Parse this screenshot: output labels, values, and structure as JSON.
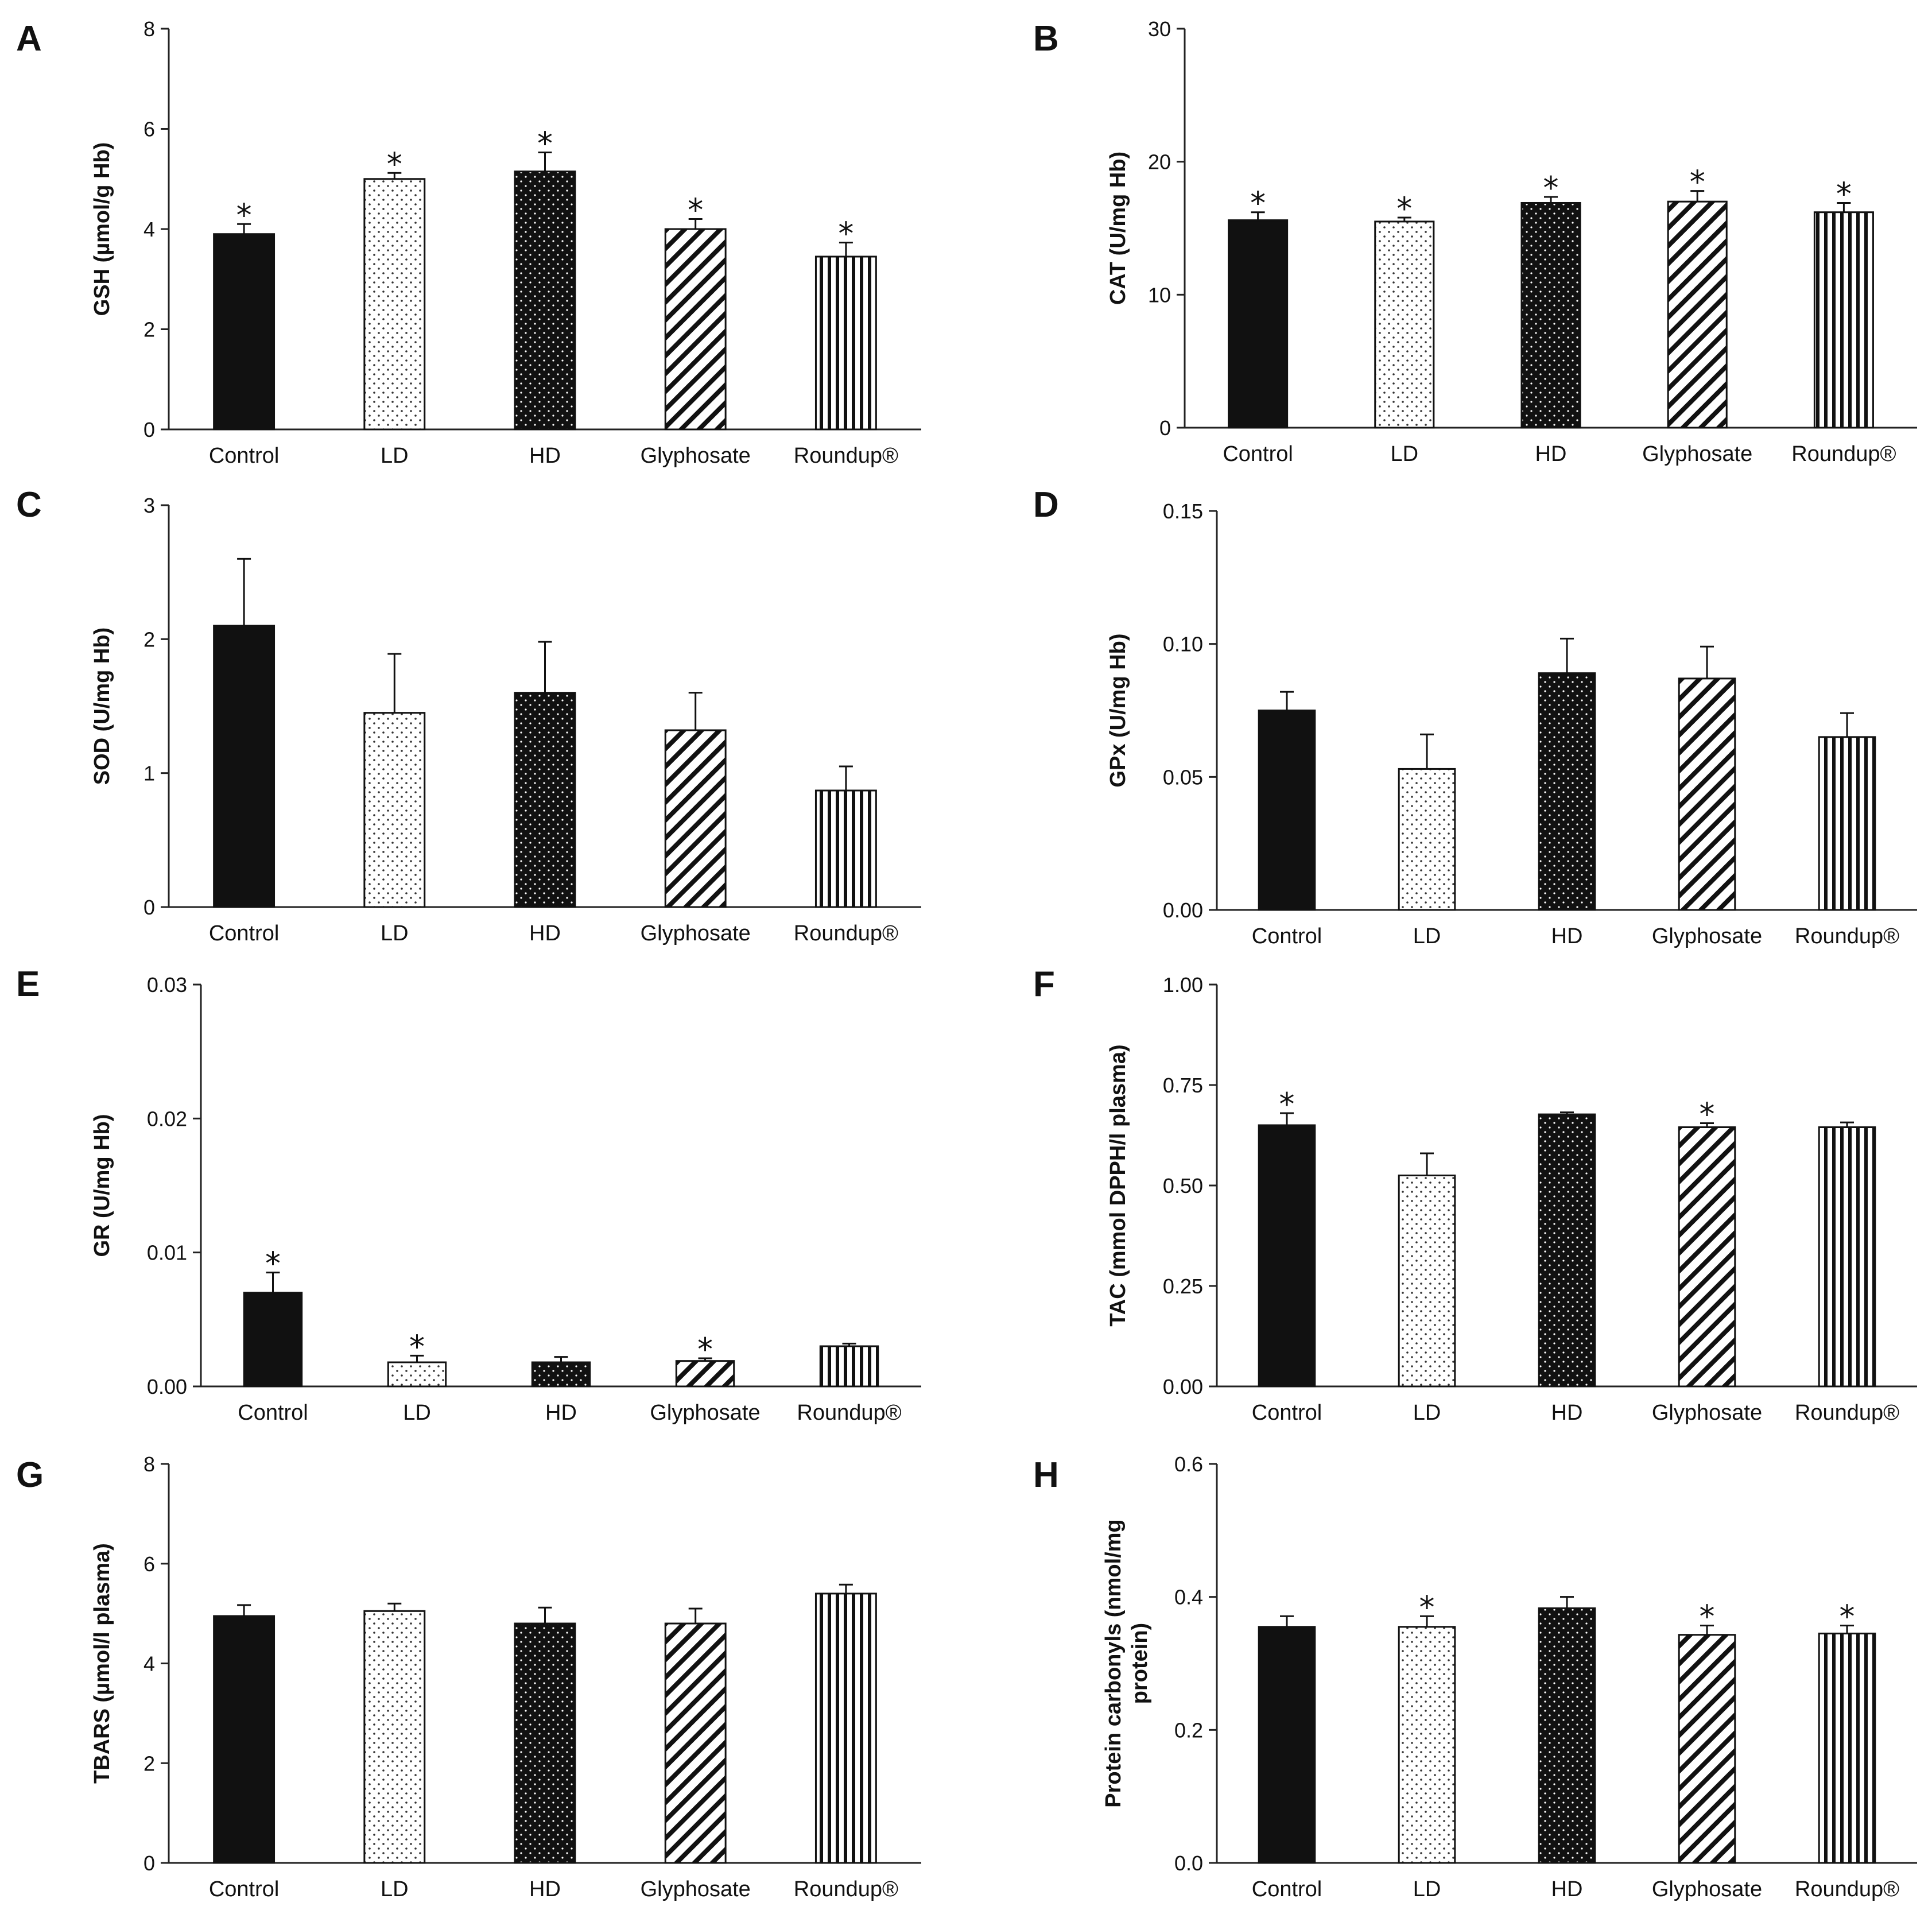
{
  "figure": {
    "panels": [
      "A",
      "B",
      "C",
      "D",
      "E",
      "F",
      "G",
      "H"
    ]
  },
  "significance_marker": "⁎",
  "patterns": {
    "Control": "solid-black",
    "LD": "white-dotted",
    "HD": "black-dotted",
    "Glyphosate": "diagonal-hatch",
    "Roundup®": "vertical-hatch"
  },
  "chart_data": [
    {
      "panel": "A",
      "type": "bar",
      "categories": [
        "Control",
        "LD",
        "HD",
        "Glyphosate",
        "Roundup®"
      ],
      "values": [
        3.9,
        5.0,
        5.15,
        4.0,
        3.45
      ],
      "errors": [
        0.2,
        0.12,
        0.38,
        0.2,
        0.28
      ],
      "significant": [
        true,
        true,
        true,
        true,
        true
      ],
      "ylabel": "GSH (µmol/g Hb)",
      "ylim": [
        0,
        8
      ],
      "yticks": [
        0,
        2,
        4,
        6,
        8
      ],
      "ytick_labels": [
        "0",
        "2",
        "4",
        "6",
        "8"
      ]
    },
    {
      "panel": "B",
      "type": "bar",
      "categories": [
        "Control",
        "LD",
        "HD",
        "Glyphosate",
        "Roundup®"
      ],
      "values": [
        15.6,
        15.5,
        16.9,
        17.0,
        16.2
      ],
      "errors": [
        0.6,
        0.3,
        0.45,
        0.8,
        0.7
      ],
      "significant": [
        true,
        true,
        true,
        true,
        true
      ],
      "ylabel": "CAT (U/mg Hb)",
      "ylim": [
        0,
        30
      ],
      "yticks": [
        0,
        10,
        20,
        30
      ],
      "ytick_labels": [
        "0",
        "10",
        "20",
        "30"
      ]
    },
    {
      "panel": "C",
      "type": "bar",
      "categories": [
        "Control",
        "LD",
        "HD",
        "Glyphosate",
        "Roundup®"
      ],
      "values": [
        2.1,
        1.45,
        1.6,
        1.32,
        0.87
      ],
      "errors": [
        0.5,
        0.44,
        0.38,
        0.28,
        0.18
      ],
      "significant": [
        false,
        false,
        false,
        false,
        false
      ],
      "ylabel": "SOD (U/mg Hb)",
      "ylim": [
        0,
        3
      ],
      "yticks": [
        0,
        1,
        2,
        3
      ],
      "ytick_labels": [
        "0",
        "1",
        "2",
        "3"
      ]
    },
    {
      "panel": "D",
      "type": "bar",
      "categories": [
        "Control",
        "LD",
        "HD",
        "Glyphosate",
        "Roundup®"
      ],
      "values": [
        0.075,
        0.053,
        0.089,
        0.087,
        0.065
      ],
      "errors": [
        0.007,
        0.013,
        0.013,
        0.012,
        0.009
      ],
      "significant": [
        false,
        false,
        false,
        false,
        false
      ],
      "ylabel": "GPx  (U/mg Hb)",
      "ylim": [
        0,
        0.15
      ],
      "yticks": [
        0,
        0.05,
        0.1,
        0.15
      ],
      "ytick_labels": [
        "0.00",
        "0.05",
        "0.10",
        "0.15"
      ]
    },
    {
      "panel": "E",
      "type": "bar",
      "categories": [
        "Control",
        "LD",
        "HD",
        "Glyphosate",
        "Roundup®"
      ],
      "values": [
        0.007,
        0.0018,
        0.0018,
        0.0019,
        0.003
      ],
      "errors": [
        0.0015,
        0.0005,
        0.0004,
        0.0002,
        0.0002
      ],
      "significant": [
        true,
        true,
        false,
        true,
        false
      ],
      "ylabel": "GR (U/mg Hb)",
      "ylim": [
        0,
        0.03
      ],
      "yticks": [
        0,
        0.01,
        0.02,
        0.03
      ],
      "ytick_labels": [
        "0.00",
        "0.01",
        "0.02",
        "0.03"
      ]
    },
    {
      "panel": "F",
      "type": "bar",
      "categories": [
        "Control",
        "LD",
        "HD",
        "Glyphosate",
        "Roundup®"
      ],
      "values": [
        0.65,
        0.525,
        0.677,
        0.645,
        0.645
      ],
      "errors": [
        0.03,
        0.055,
        0.005,
        0.01,
        0.012
      ],
      "significant": [
        true,
        false,
        false,
        true,
        false
      ],
      "ylabel": "TAC (mmol DPPH/l plasma)",
      "ylim": [
        0,
        1
      ],
      "yticks": [
        0,
        0.25,
        0.5,
        0.75,
        1
      ],
      "ytick_labels": [
        "0.00",
        "0.25",
        "0.50",
        "0.75",
        "1.00"
      ]
    },
    {
      "panel": "G",
      "type": "bar",
      "categories": [
        "Control",
        "LD",
        "HD",
        "Glyphosate",
        "Roundup®"
      ],
      "values": [
        4.95,
        5.05,
        4.8,
        4.8,
        5.4
      ],
      "errors": [
        0.22,
        0.15,
        0.32,
        0.3,
        0.18
      ],
      "significant": [
        false,
        false,
        false,
        false,
        false
      ],
      "ylabel": "TBARS (µmol/l plasma)",
      "ylim": [
        0,
        8
      ],
      "yticks": [
        0,
        2,
        4,
        6,
        8
      ],
      "ytick_labels": [
        "0",
        "2",
        "4",
        "6",
        "8"
      ]
    },
    {
      "panel": "H",
      "type": "bar",
      "categories": [
        "Control",
        "LD",
        "HD",
        "Glyphosate",
        "Roundup®"
      ],
      "values": [
        0.355,
        0.355,
        0.383,
        0.343,
        0.345
      ],
      "errors": [
        0.016,
        0.016,
        0.017,
        0.014,
        0.012
      ],
      "significant": [
        false,
        true,
        false,
        true,
        true
      ],
      "ylabel": [
        "Protein carbonyls (nmol/mg",
        "protein)"
      ],
      "ylim": [
        0,
        0.6
      ],
      "yticks": [
        0,
        0.2,
        0.4,
        0.6
      ],
      "ytick_labels": [
        "0.0",
        "0.2",
        "0.4",
        "0.6"
      ]
    }
  ]
}
